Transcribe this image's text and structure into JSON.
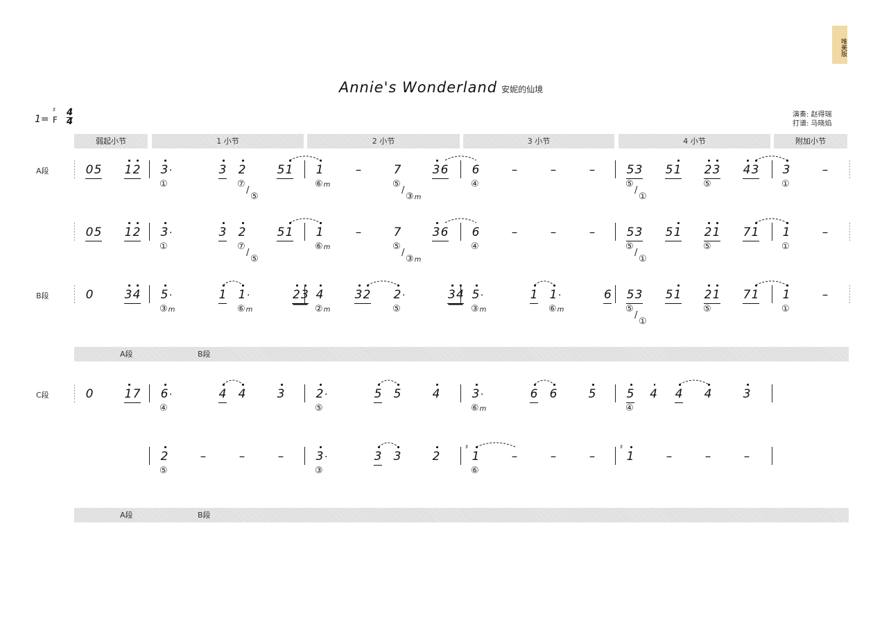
{
  "title": {
    "en": "Annie's Wonderland",
    "zh": "安妮的仙境"
  },
  "badge": "唯美版",
  "key": {
    "one": "1=",
    "sharp": "♯",
    "note": "F",
    "time_num": "4",
    "time_den": "4"
  },
  "credits": {
    "performer": "演奏: 赵得瑞",
    "transcriber": "打谱: 马晓焰"
  },
  "header_bar": [
    "弱起小节",
    "1 小节",
    "2 小节",
    "3 小节",
    "4 小节",
    "附加小节"
  ],
  "section_bars": [
    [
      "A段",
      "B段"
    ],
    [
      "A段",
      "B段"
    ]
  ],
  "rows": [
    {
      "label": "A段",
      "pickup": [
        {
          "n": "05",
          "u": 1,
          "b": 0
        },
        {
          "n": "12",
          "h": "11",
          "u": 1,
          "b": 1
        }
      ],
      "measures": [
        [
          {
            "n": "3",
            "h": "1",
            "aug": 1,
            "b": 0,
            "f": "①"
          },
          {
            "n": "3",
            "h": "1",
            "u": 1,
            "b": 1.5
          },
          {
            "n": "2",
            "h": "1",
            "b": 2,
            "f": "⑦/⑤"
          },
          {
            "n": "51",
            "h": "01",
            "u": 1,
            "b": 3,
            "tie": 1
          }
        ],
        [
          {
            "n": "1",
            "h": "1",
            "b": 0,
            "f": "⑥m"
          },
          {
            "n": "–",
            "b": 1
          },
          {
            "n": "7",
            "b": 2,
            "f": "⑤/③m"
          },
          {
            "n": "36",
            "h": "10",
            "u": 1,
            "b": 3,
            "tie": 1
          }
        ],
        [
          {
            "n": "6",
            "b": 0,
            "f": "④"
          },
          {
            "n": "–",
            "b": 1
          },
          {
            "n": "–",
            "b": 2
          },
          {
            "n": "–",
            "b": 3
          }
        ],
        [
          {
            "n": "53",
            "u": 1,
            "b": 0,
            "f": "⑤/①"
          },
          {
            "n": "51",
            "h": "01",
            "u": 1,
            "b": 1
          },
          {
            "n": "23",
            "h": "11",
            "u": 1,
            "b": 2,
            "f": "⑤"
          },
          {
            "n": "43",
            "h": "11",
            "u": 1,
            "b": 3,
            "tie": 1
          }
        ]
      ],
      "extra": [
        {
          "n": "3",
          "h": "1",
          "b": 0,
          "f": "①"
        },
        {
          "n": "–",
          "b": 1
        }
      ]
    },
    {
      "label": "",
      "pickup": [
        {
          "n": "05",
          "u": 1,
          "b": 0
        },
        {
          "n": "12",
          "h": "11",
          "u": 1,
          "b": 1
        }
      ],
      "measures": [
        [
          {
            "n": "3",
            "h": "1",
            "aug": 1,
            "b": 0,
            "f": "①"
          },
          {
            "n": "3",
            "h": "1",
            "u": 1,
            "b": 1.5
          },
          {
            "n": "2",
            "h": "1",
            "b": 2,
            "f": "⑦/⑤"
          },
          {
            "n": "51",
            "h": "01",
            "u": 1,
            "b": 3,
            "tie": 1
          }
        ],
        [
          {
            "n": "1",
            "h": "1",
            "b": 0,
            "f": "⑥m"
          },
          {
            "n": "–",
            "b": 1
          },
          {
            "n": "7",
            "b": 2,
            "f": "⑤/③m"
          },
          {
            "n": "36",
            "h": "10",
            "u": 1,
            "b": 3,
            "tie": 1
          }
        ],
        [
          {
            "n": "6",
            "b": 0,
            "f": "④"
          },
          {
            "n": "–",
            "b": 1
          },
          {
            "n": "–",
            "b": 2
          },
          {
            "n": "–",
            "b": 3
          }
        ],
        [
          {
            "n": "53",
            "u": 1,
            "b": 0,
            "f": "⑤/①"
          },
          {
            "n": "51",
            "h": "01",
            "u": 1,
            "b": 1
          },
          {
            "n": "21",
            "h": "11",
            "u": 1,
            "b": 2,
            "f": "⑤"
          },
          {
            "n": "71",
            "h": "01",
            "u": 1,
            "b": 3,
            "tie": 1
          }
        ]
      ],
      "extra": [
        {
          "n": "1",
          "h": "1",
          "b": 0,
          "f": "①"
        },
        {
          "n": "–",
          "b": 1
        }
      ]
    },
    {
      "label": "B段",
      "pickup": [
        {
          "n": "0",
          "b": 0
        },
        {
          "n": "34",
          "h": "11",
          "u": 1,
          "b": 1
        }
      ],
      "measures": [
        [
          {
            "n": "5",
            "h": "1",
            "aug": 1,
            "b": 0,
            "f": "③m"
          },
          {
            "n": "1",
            "h": "1",
            "u": 1,
            "b": 1.5,
            "tie": 1
          },
          {
            "n": "1",
            "h": "1",
            "aug": 1,
            "b": 2,
            "f": "⑥m"
          },
          {
            "n": "23",
            "h": "11",
            "u": 2,
            "b": 3.4
          }
        ],
        [
          {
            "n": "4",
            "h": "1",
            "b": 0,
            "f": "②m"
          },
          {
            "n": "32",
            "h": "11",
            "u": 1,
            "b": 1,
            "tie": 1
          },
          {
            "n": "2",
            "h": "1",
            "aug": 1,
            "b": 2,
            "f": "⑤"
          },
          {
            "n": "34",
            "h": "11",
            "u": 2,
            "b": 3.4
          }
        ],
        [
          {
            "n": "5",
            "h": "1",
            "aug": 1,
            "b": 0,
            "f": "③m"
          },
          {
            "n": "1",
            "h": "1",
            "u": 1,
            "b": 1.5,
            "tie": 1
          },
          {
            "n": "1",
            "h": "1",
            "aug": 1,
            "b": 2,
            "f": "⑥m"
          },
          {
            "n": "6",
            "u": 1,
            "b": 3.4
          }
        ],
        [
          {
            "n": "53",
            "u": 1,
            "b": 0,
            "f": "⑤/①"
          },
          {
            "n": "51",
            "h": "01",
            "u": 1,
            "b": 1
          },
          {
            "n": "21",
            "h": "11",
            "u": 1,
            "b": 2,
            "f": "⑤"
          },
          {
            "n": "71",
            "h": "01",
            "u": 1,
            "b": 3,
            "tie": 1
          }
        ]
      ],
      "extra": [
        {
          "n": "1",
          "h": "1",
          "b": 0,
          "f": "①"
        },
        {
          "n": "–",
          "b": 1
        }
      ]
    },
    {
      "label": "C段",
      "pickup": [
        {
          "n": "0",
          "b": 0
        },
        {
          "n": "17",
          "h": "10",
          "u": 1,
          "b": 1
        }
      ],
      "measures": [
        [
          {
            "n": "6",
            "h": "1",
            "aug": 1,
            "b": 0,
            "f": "④"
          },
          {
            "n": "4",
            "h": "1",
            "u": 1,
            "b": 1.5,
            "tie": 1
          },
          {
            "n": "4",
            "h": "1",
            "b": 2
          },
          {
            "n": "3",
            "h": "1",
            "b": 3
          }
        ],
        [
          {
            "n": "2",
            "h": "1",
            "aug": 1,
            "b": 0,
            "f": "⑤"
          },
          {
            "n": "5",
            "h": "1",
            "u": 1,
            "b": 1.5,
            "tie": 1
          },
          {
            "n": "5",
            "h": "1",
            "b": 2
          },
          {
            "n": "4",
            "h": "1",
            "b": 3
          }
        ],
        [
          {
            "n": "3",
            "h": "1",
            "aug": 1,
            "b": 0,
            "f": "⑥m"
          },
          {
            "n": "6",
            "h": "1",
            "u": 1,
            "b": 1.5,
            "tie": 1
          },
          {
            "n": "6",
            "h": "1",
            "b": 2
          },
          {
            "n": "5",
            "h": "1",
            "b": 3
          }
        ],
        [
          {
            "n": "5",
            "h": "1",
            "u": 1,
            "b": 0,
            "f": "④"
          },
          {
            "n": "4",
            "h": "1",
            "b": 0.6
          },
          {
            "n": "4",
            "h": "1",
            "u": 1,
            "b": 1.25,
            "tie": 1
          },
          {
            "n": "4",
            "h": "1",
            "b": 2
          },
          {
            "n": "3",
            "h": "1",
            "b": 3
          }
        ]
      ],
      "extra": null
    },
    {
      "label": "",
      "pickup": null,
      "measures": [
        [
          {
            "n": "2",
            "h": "1",
            "b": 0,
            "f": "⑤"
          },
          {
            "n": "–",
            "b": 1
          },
          {
            "n": "–",
            "b": 2
          },
          {
            "n": "–",
            "b": 3
          }
        ],
        [
          {
            "n": "3",
            "h": "1",
            "aug": 1,
            "b": 0,
            "f": "③"
          },
          {
            "n": "3",
            "h": "1",
            "u": 1,
            "b": 1.5,
            "tie": 1
          },
          {
            "n": "3",
            "h": "1",
            "b": 2
          },
          {
            "n": "2",
            "h": "1",
            "b": 3
          }
        ],
        [
          {
            "n": "1",
            "h": "1",
            "sh": "♯",
            "b": 0,
            "f": "⑥",
            "tie": 1
          },
          {
            "n": "–",
            "b": 1
          },
          {
            "n": "–",
            "b": 2
          },
          {
            "n": "–",
            "b": 3
          }
        ],
        [
          {
            "n": "1",
            "h": "1",
            "sh": "♯",
            "b": 0
          },
          {
            "n": "–",
            "b": 1
          },
          {
            "n": "–",
            "b": 2
          },
          {
            "n": "–",
            "b": 3
          }
        ]
      ],
      "extra": null
    }
  ],
  "colors": {
    "badge": "#f1d9a4",
    "bar_texture": "#dcdcdc",
    "ink": "#111111"
  }
}
